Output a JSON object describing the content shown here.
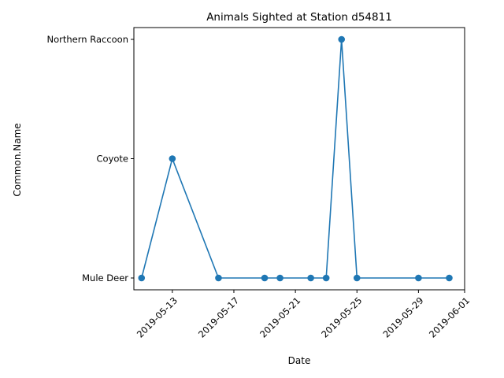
{
  "chart_data": {
    "type": "line",
    "title": "Animals Sighted at Station d54811",
    "xlabel": "Date",
    "ylabel": "Common.Name",
    "y_categories": [
      "Mule Deer",
      "Coyote",
      "Northern Raccoon"
    ],
    "x_ticks": [
      "2019-05-13",
      "2019-05-17",
      "2019-05-21",
      "2019-05-25",
      "2019-05-29",
      "2019-06-01"
    ],
    "xlim": [
      "2019-05-10T12:00",
      "2019-06-01"
    ],
    "points": [
      {
        "date": "2019-05-11",
        "name": "Mule Deer"
      },
      {
        "date": "2019-05-13",
        "name": "Coyote"
      },
      {
        "date": "2019-05-16",
        "name": "Mule Deer"
      },
      {
        "date": "2019-05-19",
        "name": "Mule Deer"
      },
      {
        "date": "2019-05-20",
        "name": "Mule Deer"
      },
      {
        "date": "2019-05-22",
        "name": "Mule Deer"
      },
      {
        "date": "2019-05-23",
        "name": "Mule Deer"
      },
      {
        "date": "2019-05-24",
        "name": "Northern Raccoon"
      },
      {
        "date": "2019-05-25",
        "name": "Mule Deer"
      },
      {
        "date": "2019-05-29",
        "name": "Mule Deer"
      },
      {
        "date": "2019-05-31",
        "name": "Mule Deer"
      }
    ],
    "series_color": "#1f77b4",
    "grid": false,
    "legend": "none"
  }
}
